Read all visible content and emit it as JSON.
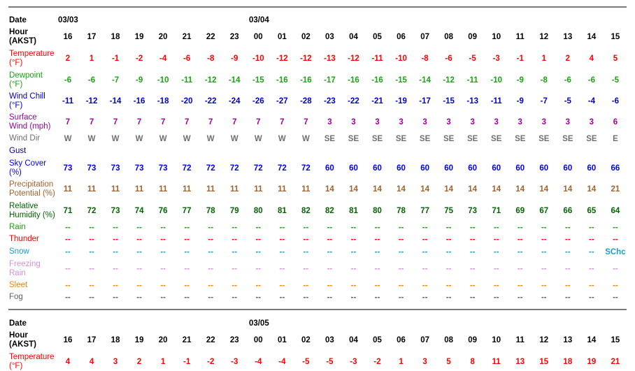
{
  "colors": {
    "temperature": "#ff0000",
    "dewpoint": "#1aa312",
    "wind_chill": "#0000cc",
    "surface_wind": "#a000a0",
    "wind_dir": "#707070",
    "gust": "#000080",
    "sky_cover": "#0000ee",
    "precip": "#a0632c",
    "humidity": "#006400",
    "rain": "#1aa312",
    "thunder": "#ff0000",
    "snow": "#1aa0c8",
    "freezing_rain": "#d890d8",
    "sleet": "#ff8000",
    "fog": "#606060",
    "header": "#000000"
  },
  "block1": {
    "date_label": "Date",
    "date_1": "03/03",
    "date_2": "03/04",
    "hour_label": "Hour",
    "hour_sub": "(AKST)",
    "hours": [
      "16",
      "17",
      "18",
      "19",
      "20",
      "21",
      "22",
      "23",
      "00",
      "01",
      "02",
      "03",
      "04",
      "05",
      "06",
      "07",
      "08",
      "09",
      "10",
      "11",
      "12",
      "13",
      "14",
      "15"
    ],
    "temperature": {
      "label1": "Temperature",
      "label2": "(°F)",
      "values": [
        "2",
        "1",
        "-1",
        "-2",
        "-4",
        "-6",
        "-8",
        "-9",
        "-10",
        "-12",
        "-12",
        "-13",
        "-12",
        "-11",
        "-10",
        "-8",
        "-6",
        "-5",
        "-3",
        "-1",
        "1",
        "2",
        "4",
        "5"
      ]
    },
    "dewpoint": {
      "label1": "Dewpoint",
      "label2": "(°F)",
      "values": [
        "-6",
        "-6",
        "-7",
        "-9",
        "-10",
        "-11",
        "-12",
        "-14",
        "-15",
        "-16",
        "-16",
        "-17",
        "-16",
        "-16",
        "-15",
        "-14",
        "-12",
        "-11",
        "-10",
        "-9",
        "-8",
        "-6",
        "-6",
        "-5"
      ]
    },
    "wind_chill": {
      "label1": "Wind Chill",
      "label2": "(°F)",
      "values": [
        "-11",
        "-12",
        "-14",
        "-16",
        "-18",
        "-20",
        "-22",
        "-24",
        "-26",
        "-27",
        "-28",
        "-23",
        "-22",
        "-21",
        "-19",
        "-17",
        "-15",
        "-13",
        "-11",
        "-9",
        "-7",
        "-5",
        "-4",
        "-6"
      ]
    },
    "surface_wind": {
      "label1": "Surface",
      "label2": "Wind (mph)",
      "values": [
        "7",
        "7",
        "7",
        "7",
        "7",
        "7",
        "7",
        "7",
        "7",
        "7",
        "7",
        "3",
        "3",
        "3",
        "3",
        "3",
        "3",
        "3",
        "3",
        "3",
        "3",
        "3",
        "3",
        "6"
      ]
    },
    "wind_dir": {
      "label1": "Wind Dir",
      "values": [
        "W",
        "W",
        "W",
        "W",
        "W",
        "W",
        "W",
        "W",
        "W",
        "W",
        "W",
        "SE",
        "SE",
        "SE",
        "SE",
        "SE",
        "SE",
        "SE",
        "SE",
        "SE",
        "SE",
        "SE",
        "SE",
        "E"
      ]
    },
    "gust": {
      "label1": "Gust",
      "values": [
        "",
        "",
        "",
        "",
        "",
        "",
        "",
        "",
        "",
        "",
        "",
        "",
        "",
        "",
        "",
        "",
        "",
        "",
        "",
        "",
        "",
        "",
        "",
        ""
      ]
    },
    "sky_cover": {
      "label1": "Sky Cover",
      "label2": "(%)",
      "values": [
        "73",
        "73",
        "73",
        "73",
        "73",
        "72",
        "72",
        "72",
        "72",
        "72",
        "72",
        "60",
        "60",
        "60",
        "60",
        "60",
        "60",
        "60",
        "60",
        "60",
        "60",
        "60",
        "60",
        "66"
      ]
    },
    "precip": {
      "label1": "Precipitation",
      "label2": "Potential (%)",
      "values": [
        "11",
        "11",
        "11",
        "11",
        "11",
        "11",
        "11",
        "11",
        "11",
        "11",
        "11",
        "14",
        "14",
        "14",
        "14",
        "14",
        "14",
        "14",
        "14",
        "14",
        "14",
        "14",
        "14",
        "21"
      ]
    },
    "humidity": {
      "label1": "Relative",
      "label2": "Humidity (%)",
      "values": [
        "71",
        "72",
        "73",
        "74",
        "76",
        "77",
        "78",
        "79",
        "80",
        "81",
        "82",
        "82",
        "81",
        "80",
        "78",
        "77",
        "75",
        "73",
        "71",
        "69",
        "67",
        "66",
        "65",
        "64"
      ]
    },
    "rain": {
      "label1": "Rain",
      "values": [
        "--",
        "--",
        "--",
        "--",
        "--",
        "--",
        "--",
        "--",
        "--",
        "--",
        "--",
        "--",
        "--",
        "--",
        "--",
        "--",
        "--",
        "--",
        "--",
        "--",
        "--",
        "--",
        "--",
        "--"
      ]
    },
    "thunder": {
      "label1": "Thunder",
      "values": [
        "--",
        "--",
        "--",
        "--",
        "--",
        "--",
        "--",
        "--",
        "--",
        "--",
        "--",
        "--",
        "--",
        "--",
        "--",
        "--",
        "--",
        "--",
        "--",
        "--",
        "--",
        "--",
        "--",
        "--"
      ]
    },
    "snow": {
      "label1": "Snow",
      "values": [
        "--",
        "--",
        "--",
        "--",
        "--",
        "--",
        "--",
        "--",
        "--",
        "--",
        "--",
        "--",
        "--",
        "--",
        "--",
        "--",
        "--",
        "--",
        "--",
        "--",
        "--",
        "--",
        "--",
        "SChc"
      ]
    },
    "freezing_rain": {
      "label1": "Freezing",
      "label2": "Rain",
      "values": [
        "--",
        "--",
        "--",
        "--",
        "--",
        "--",
        "--",
        "--",
        "--",
        "--",
        "--",
        "--",
        "--",
        "--",
        "--",
        "--",
        "--",
        "--",
        "--",
        "--",
        "--",
        "--",
        "--",
        "--"
      ]
    },
    "sleet": {
      "label1": "Sleet",
      "values": [
        "--",
        "--",
        "--",
        "--",
        "--",
        "--",
        "--",
        "--",
        "--",
        "--",
        "--",
        "--",
        "--",
        "--",
        "--",
        "--",
        "--",
        "--",
        "--",
        "--",
        "--",
        "--",
        "--",
        "--"
      ]
    },
    "fog": {
      "label1": "Fog",
      "values": [
        "--",
        "--",
        "--",
        "--",
        "--",
        "--",
        "--",
        "--",
        "--",
        "--",
        "--",
        "--",
        "--",
        "--",
        "--",
        "--",
        "--",
        "--",
        "--",
        "--",
        "--",
        "--",
        "--",
        "--"
      ]
    }
  },
  "block2": {
    "date_label": "Date",
    "date_1": "03/05",
    "hour_label": "Hour",
    "hour_sub": "(AKST)",
    "hours": [
      "16",
      "17",
      "18",
      "19",
      "20",
      "21",
      "22",
      "23",
      "00",
      "01",
      "02",
      "03",
      "04",
      "05",
      "06",
      "07",
      "08",
      "09",
      "10",
      "11",
      "12",
      "13",
      "14",
      "15"
    ],
    "temperature": {
      "label1": "Temperature",
      "label2": "(°F)",
      "values": [
        "4",
        "4",
        "3",
        "2",
        "1",
        "-1",
        "-2",
        "-3",
        "-4",
        "-4",
        "-5",
        "-5",
        "-3",
        "-2",
        "1",
        "3",
        "5",
        "8",
        "11",
        "13",
        "15",
        "18",
        "19",
        "21"
      ]
    }
  }
}
